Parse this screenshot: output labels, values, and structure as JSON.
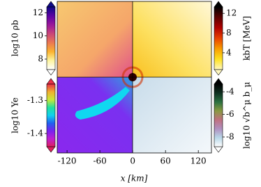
{
  "chart_data": {
    "type": "heatmap",
    "xlabel": "x [km]",
    "xlim": [
      -138,
      144
    ],
    "xticks": [
      -120,
      -60,
      0,
      60,
      120
    ],
    "colorbars": [
      {
        "position": "left-top",
        "label": "log10 ρb",
        "lim": [
          7.1,
          12.5
        ],
        "ticks": [
          8,
          10,
          12
        ],
        "colors": [
          "#0d0887",
          "#5b02a3",
          "#9a179b",
          "#cb4678",
          "#eb7852",
          "#fbb32f",
          "#fdf5a0",
          "#ffffff"
        ]
      },
      {
        "position": "right-top",
        "label": "kbT [MeV]",
        "lim": [
          0.6,
          13.3
        ],
        "ticks": [
          4,
          8,
          12
        ],
        "colors": [
          "#000000",
          "#5a0000",
          "#b00000",
          "#e84000",
          "#f89c00",
          "#fde020",
          "#fff8c0"
        ]
      },
      {
        "position": "left-bottom",
        "label": "log10 Ye",
        "lim": [
          -1.44,
          -1.25
        ],
        "ticks": [
          -1.4,
          -1.3
        ],
        "colors": [
          "#e8304a",
          "#f0b030",
          "#c8e83a",
          "#20e0a0",
          "#10d0f0",
          "#2060f0",
          "#7a20f0",
          "#c020d0",
          "#e02060"
        ]
      },
      {
        "position": "right-bottom",
        "label": "log10 √b^μ b_μ",
        "lim": [
          -8.86,
          -3.32
        ],
        "ticks": [
          -8,
          -6,
          -4
        ],
        "colors": [
          "#000000",
          "#103020",
          "#2a7040",
          "#8a9a40",
          "#c07080",
          "#b090c0",
          "#b8d8e8",
          "#ffffff"
        ]
      }
    ]
  }
}
